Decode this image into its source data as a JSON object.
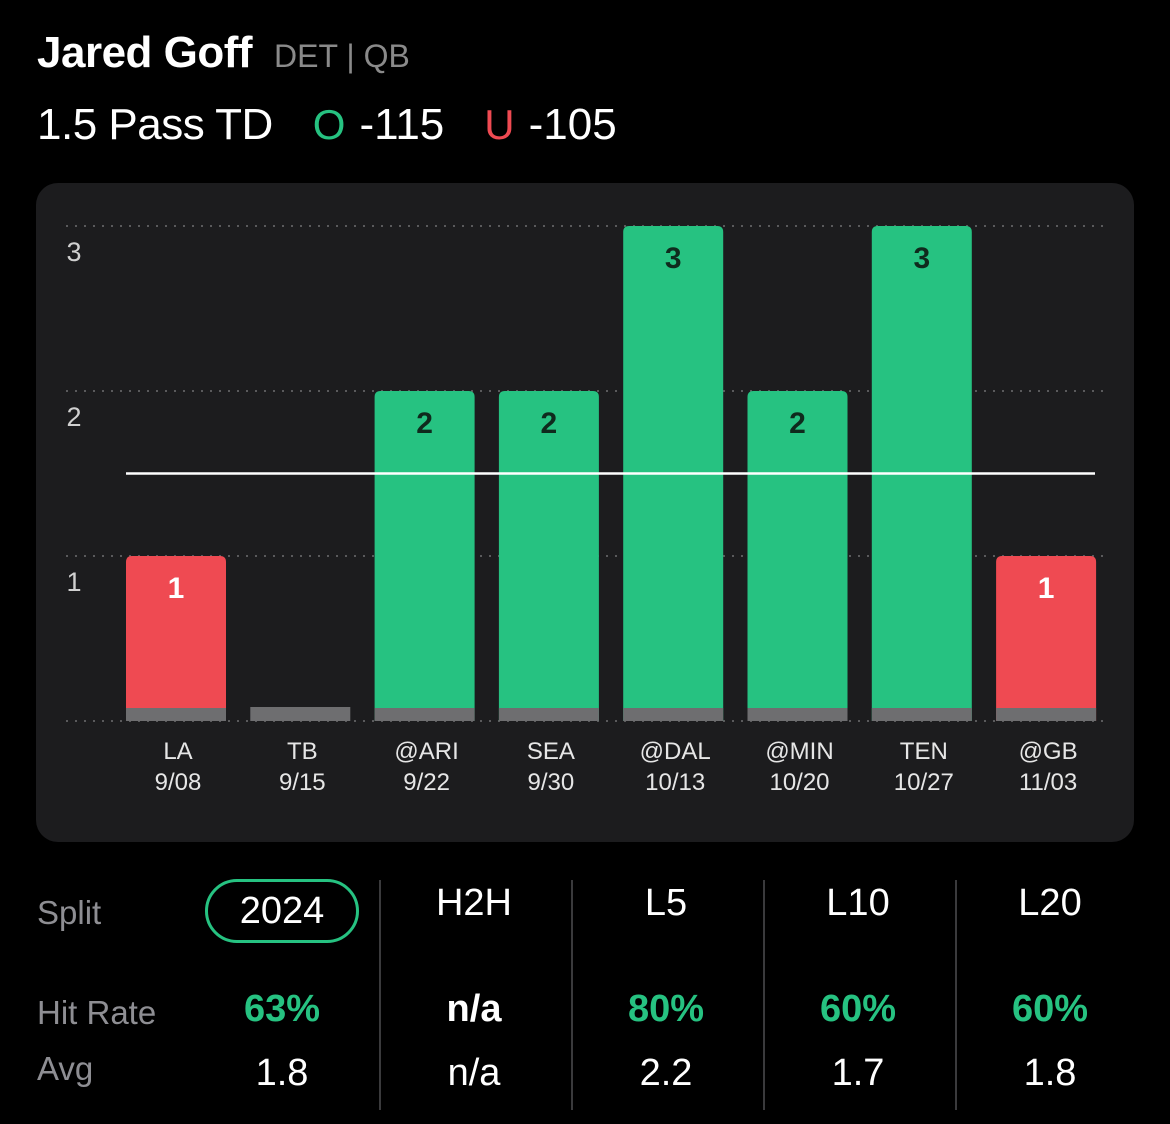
{
  "player": {
    "name": "Jared Goff",
    "team_pos": "DET | QB"
  },
  "prop": {
    "line": "1.5 Pass TD",
    "over_label": "O",
    "over_odds": "-115",
    "under_label": "U",
    "under_odds": "-105"
  },
  "colors": {
    "over": "#26c281",
    "under": "#ef4a52",
    "zero": "#6e6e70",
    "card": "#1c1c1e"
  },
  "chart_data": {
    "type": "bar",
    "categories": [
      "LA\n9/08",
      "TB\n9/15",
      "@ARI\n9/22",
      "SEA\n9/30",
      "@DAL\n10/13",
      "@MIN\n10/20",
      "TEN\n10/27",
      "@GB\n11/03"
    ],
    "opponents": [
      "LA",
      "TB",
      "@ARI",
      "SEA",
      "@DAL",
      "@MIN",
      "TEN",
      "@GB"
    ],
    "dates": [
      "9/08",
      "9/15",
      "9/22",
      "9/30",
      "10/13",
      "10/20",
      "10/27",
      "11/03"
    ],
    "values": [
      1,
      0,
      2,
      2,
      3,
      2,
      3,
      1
    ],
    "threshold": 1.5,
    "yticks": [
      1,
      2,
      3
    ],
    "ylim": [
      0,
      3
    ],
    "grid": true
  },
  "stats": {
    "split_label": "Split",
    "hit_label": "Hit Rate",
    "avg_label": "Avg",
    "columns": [
      {
        "split": "2024",
        "hit": "63%",
        "avg": "1.8",
        "active": true,
        "hit_green": true
      },
      {
        "split": "H2H",
        "hit": "n/a",
        "avg": "n/a",
        "active": false,
        "hit_green": false
      },
      {
        "split": "L5",
        "hit": "80%",
        "avg": "2.2",
        "active": false,
        "hit_green": true
      },
      {
        "split": "L10",
        "hit": "60%",
        "avg": "1.7",
        "active": false,
        "hit_green": true
      },
      {
        "split": "L20",
        "hit": "60%",
        "avg": "1.8",
        "active": false,
        "hit_green": true
      }
    ]
  }
}
